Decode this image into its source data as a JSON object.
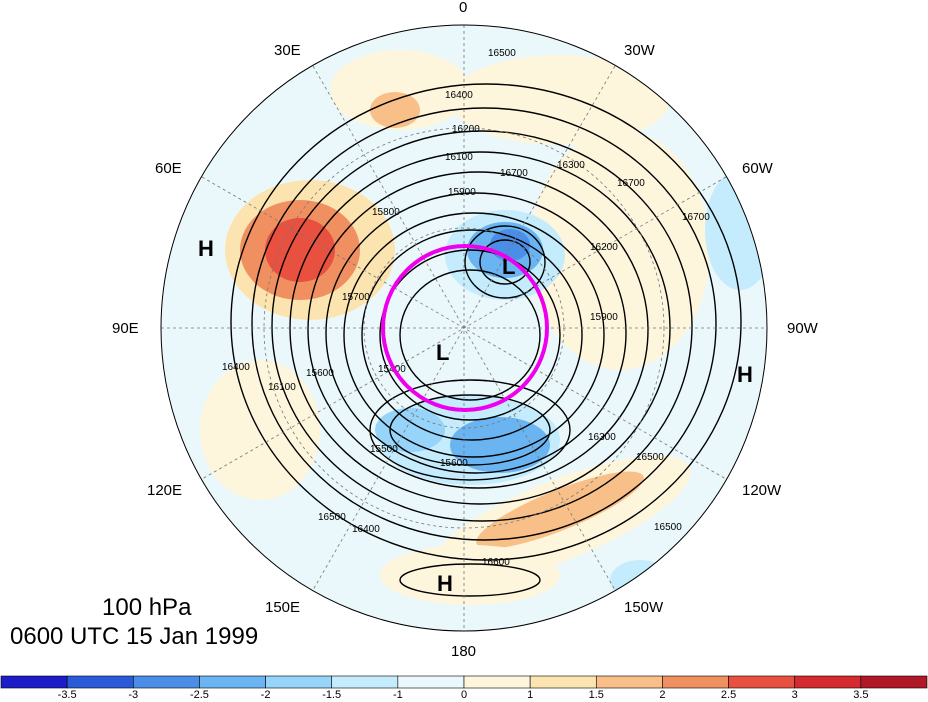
{
  "title": {
    "level": "100 hPa",
    "time": "0600 UTC 15 Jan 1999"
  },
  "longitude_labels": {
    "lon_0": "0",
    "lon_30w": "30W",
    "lon_60w": "60W",
    "lon_90w": "90W",
    "lon_120w": "120W",
    "lon_150w": "150W",
    "lon_180": "180",
    "lon_150e": "150E",
    "lon_120e": "120E",
    "lon_90e": "90E",
    "lon_60e": "60E",
    "lon_30e": "30E"
  },
  "pressure_centers": [
    "H",
    "L",
    "L",
    "H",
    "H"
  ],
  "contour_labels": [
    "16500",
    "16400",
    "16200",
    "16100",
    "16700",
    "16300",
    "16700",
    "15900",
    "15800",
    "15700",
    "15600",
    "15500",
    "15400",
    "16200",
    "15600",
    "16500",
    "16600",
    "16400",
    "16500",
    "16300",
    "15900",
    "16100",
    "16400",
    "16500",
    "16700"
  ],
  "colorbar": {
    "ticks": [
      "-3.5",
      "-3",
      "-2.5",
      "-2",
      "-1.5",
      "-1",
      "0",
      "1",
      "1.5",
      "2",
      "2.5",
      "3",
      "3.5"
    ],
    "colors": [
      "#1c1cc8",
      "#2a5ad8",
      "#4a8ee8",
      "#6ab4f2",
      "#96d4fa",
      "#c4ecfc",
      "#eaf8fc",
      "#fdf6dc",
      "#fce4b0",
      "#f8c088",
      "#f09060",
      "#e85040",
      "#d42a30",
      "#b01828"
    ]
  },
  "highlight_color": "#ee00ee"
}
